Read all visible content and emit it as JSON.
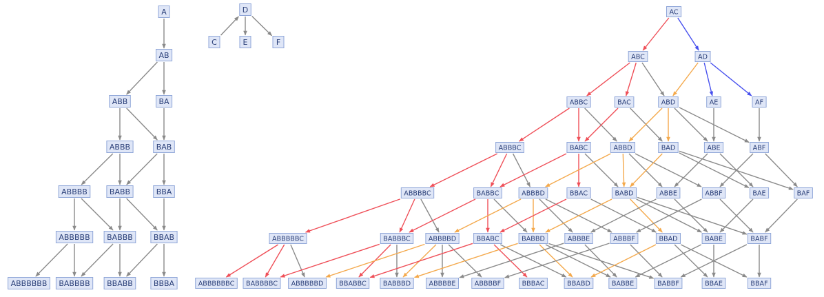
{
  "colors": {
    "node_fill": "#dfe6f7",
    "node_border": "#8fa6d8",
    "node_text": "#2a3f78",
    "edge_gray": "#8a8a8a",
    "edge_red": "#ef4f58",
    "edge_orange": "#f4a94c",
    "edge_blue": "#4750ee"
  },
  "graphs": [
    {
      "name": "left-tree",
      "nodes": [
        "A",
        "AB",
        "ABB",
        "BA",
        "ABBB",
        "BAB",
        "ABBBB",
        "BABB",
        "BBA",
        "ABBBBB",
        "BABBB",
        "BBAB",
        "ABBBBBB",
        "BABBBB",
        "BBABB",
        "BBBA"
      ],
      "edges": [
        [
          "A",
          "AB",
          "gray"
        ],
        [
          "AB",
          "ABB",
          "gray"
        ],
        [
          "AB",
          "BA",
          "gray"
        ],
        [
          "ABB",
          "ABBB",
          "gray"
        ],
        [
          "ABB",
          "BAB",
          "gray"
        ],
        [
          "BA",
          "BAB",
          "gray"
        ],
        [
          "ABBB",
          "ABBBB",
          "gray"
        ],
        [
          "ABBB",
          "BABB",
          "gray"
        ],
        [
          "BAB",
          "BABB",
          "gray"
        ],
        [
          "BAB",
          "BBA",
          "gray"
        ],
        [
          "ABBBB",
          "ABBBBB",
          "gray"
        ],
        [
          "ABBBB",
          "BABBB",
          "gray"
        ],
        [
          "BABB",
          "BABBB",
          "gray"
        ],
        [
          "BABB",
          "BBAB",
          "gray"
        ],
        [
          "BBA",
          "BBAB",
          "gray"
        ],
        [
          "ABBBBB",
          "ABBBBBB",
          "gray"
        ],
        [
          "ABBBBB",
          "BABBBB",
          "gray"
        ],
        [
          "BABBB",
          "BABBBB",
          "gray"
        ],
        [
          "BABBB",
          "BBABB",
          "gray"
        ],
        [
          "BBAB",
          "BBABB",
          "gray"
        ],
        [
          "BBAB",
          "BBBA",
          "gray"
        ]
      ]
    },
    {
      "name": "small-tree",
      "nodes": [
        "D",
        "C",
        "E",
        "F"
      ],
      "edges": [
        [
          "C",
          "D",
          "gray"
        ],
        [
          "D",
          "E",
          "gray"
        ],
        [
          "D",
          "F",
          "gray"
        ]
      ]
    },
    {
      "name": "right-graph",
      "nodes": [
        "AC",
        "ABC",
        "AD",
        "ABBC",
        "BAC",
        "ABD",
        "AE",
        "AF",
        "ABBBC",
        "BABC",
        "ABBD",
        "BAD",
        "ABE",
        "ABF",
        "ABBBBC",
        "BABBC",
        "ABBBD",
        "BBAC",
        "BABD",
        "ABBE",
        "ABBF",
        "BAE",
        "BAF",
        "ABBBBBC",
        "BABBBC",
        "ABBBBD",
        "BBABC",
        "BABBD",
        "ABBBE",
        "ABBBF",
        "BBAD",
        "BABE",
        "BABF",
        "ABBBBBBC",
        "BABBBBC",
        "ABBBBBD",
        "BBABBC",
        "BABBBD",
        "ABBBBE",
        "ABBBBF",
        "BBBAC",
        "BBABD",
        "BABBE",
        "BABBF",
        "BBAE",
        "BBAF"
      ],
      "edges": [
        [
          "AC",
          "ABC",
          "red"
        ],
        [
          "AC",
          "AD",
          "blue"
        ],
        [
          "ABC",
          "ABBC",
          "red"
        ],
        [
          "ABC",
          "BAC",
          "red"
        ],
        [
          "ABC",
          "ABD",
          "gray"
        ],
        [
          "AD",
          "ABD",
          "orange"
        ],
        [
          "AD",
          "AE",
          "blue"
        ],
        [
          "AD",
          "AF",
          "blue"
        ],
        [
          "ABBC",
          "ABBBC",
          "red"
        ],
        [
          "ABBC",
          "BABC",
          "red"
        ],
        [
          "ABBC",
          "ABBD",
          "gray"
        ],
        [
          "BAC",
          "BABC",
          "red"
        ],
        [
          "BAC",
          "BAD",
          "gray"
        ],
        [
          "ABD",
          "ABBD",
          "orange"
        ],
        [
          "ABD",
          "BAD",
          "orange"
        ],
        [
          "ABD",
          "ABE",
          "gray"
        ],
        [
          "ABD",
          "ABF",
          "gray"
        ],
        [
          "AE",
          "ABE",
          "gray"
        ],
        [
          "AF",
          "ABF",
          "gray"
        ],
        [
          "ABBBC",
          "ABBBBC",
          "red"
        ],
        [
          "ABBBC",
          "BABBC",
          "red"
        ],
        [
          "ABBBC",
          "ABBBD",
          "gray"
        ],
        [
          "BABC",
          "BABBC",
          "red"
        ],
        [
          "BABC",
          "BBAC",
          "red"
        ],
        [
          "BABC",
          "BABD",
          "gray"
        ],
        [
          "ABBD",
          "ABBBD",
          "orange"
        ],
        [
          "ABBD",
          "BABD",
          "orange"
        ],
        [
          "ABBD",
          "ABBE",
          "gray"
        ],
        [
          "ABBD",
          "ABBF",
          "gray"
        ],
        [
          "BAD",
          "BABD",
          "orange"
        ],
        [
          "BAD",
          "BAE",
          "gray"
        ],
        [
          "BAD",
          "BAF",
          "gray"
        ],
        [
          "ABE",
          "ABBE",
          "gray"
        ],
        [
          "ABE",
          "BAE",
          "gray"
        ],
        [
          "ABF",
          "ABBF",
          "gray"
        ],
        [
          "ABF",
          "BAF",
          "gray"
        ],
        [
          "ABBBBC",
          "ABBBBBC",
          "red"
        ],
        [
          "ABBBBC",
          "BABBBC",
          "red"
        ],
        [
          "ABBBBC",
          "ABBBBD",
          "gray"
        ],
        [
          "BABBC",
          "BABBBC",
          "red"
        ],
        [
          "BABBC",
          "BBABC",
          "red"
        ],
        [
          "BABBC",
          "BABBD",
          "gray"
        ],
        [
          "ABBBD",
          "ABBBBD",
          "orange"
        ],
        [
          "ABBBD",
          "BABBD",
          "orange"
        ],
        [
          "ABBBD",
          "ABBBE",
          "gray"
        ],
        [
          "ABBBD",
          "ABBBF",
          "gray"
        ],
        [
          "BBAC",
          "BBABC",
          "red"
        ],
        [
          "BBAC",
          "BBAD",
          "gray"
        ],
        [
          "BABD",
          "BABBD",
          "orange"
        ],
        [
          "BABD",
          "BBAD",
          "orange"
        ],
        [
          "BABD",
          "BABE",
          "gray"
        ],
        [
          "BABD",
          "BABF",
          "gray"
        ],
        [
          "ABBE",
          "ABBBE",
          "gray"
        ],
        [
          "ABBE",
          "BABE",
          "gray"
        ],
        [
          "ABBF",
          "ABBBF",
          "gray"
        ],
        [
          "ABBF",
          "BABF",
          "gray"
        ],
        [
          "BAE",
          "BABE",
          "gray"
        ],
        [
          "BAF",
          "BABF",
          "gray"
        ],
        [
          "ABBBBBC",
          "ABBBBBBC",
          "red"
        ],
        [
          "ABBBBBC",
          "BABBBBC",
          "red"
        ],
        [
          "ABBBBBC",
          "ABBBBBD",
          "gray"
        ],
        [
          "BABBBC",
          "BABBBBC",
          "red"
        ],
        [
          "BABBBC",
          "BBABBC",
          "red"
        ],
        [
          "BABBBC",
          "BABBBD",
          "gray"
        ],
        [
          "ABBBBD",
          "ABBBBBD",
          "orange"
        ],
        [
          "ABBBBD",
          "BABBBD",
          "orange"
        ],
        [
          "ABBBBD",
          "ABBBBE",
          "gray"
        ],
        [
          "ABBBBD",
          "ABBBBF",
          "gray"
        ],
        [
          "BBABC",
          "BBABBC",
          "red"
        ],
        [
          "BBABC",
          "BBBAC",
          "red"
        ],
        [
          "BBABC",
          "BBABD",
          "gray"
        ],
        [
          "BABBD",
          "BABBBD",
          "orange"
        ],
        [
          "BABBD",
          "BBABD",
          "orange"
        ],
        [
          "BABBD",
          "BABBE",
          "gray"
        ],
        [
          "BABBD",
          "BABBF",
          "gray"
        ],
        [
          "ABBBE",
          "ABBBBE",
          "gray"
        ],
        [
          "ABBBE",
          "BABBE",
          "gray"
        ],
        [
          "ABBBF",
          "ABBBBF",
          "gray"
        ],
        [
          "ABBBF",
          "BABBF",
          "gray"
        ],
        [
          "BBAD",
          "BBABD",
          "orange"
        ],
        [
          "BBAD",
          "BBAE",
          "gray"
        ],
        [
          "BBAD",
          "BBAF",
          "gray"
        ],
        [
          "BABE",
          "BABBE",
          "gray"
        ],
        [
          "BABE",
          "BBAE",
          "gray"
        ],
        [
          "BABF",
          "BABBF",
          "gray"
        ],
        [
          "BABF",
          "BBAF",
          "gray"
        ]
      ]
    }
  ]
}
